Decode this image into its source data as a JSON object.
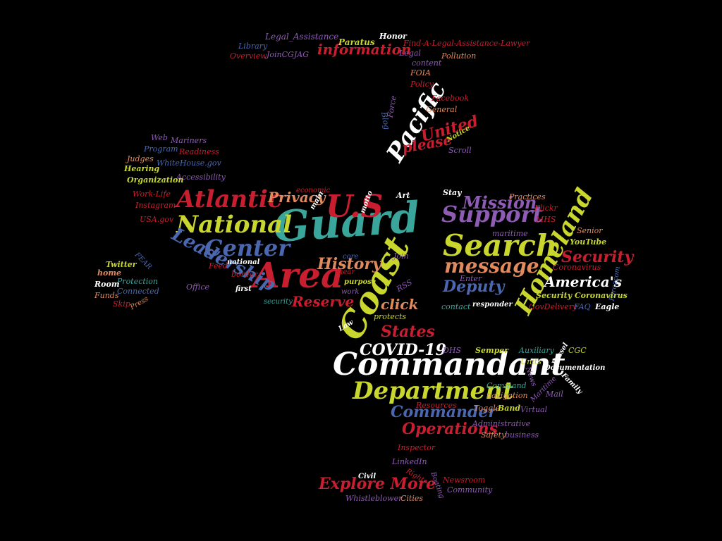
{
  "words": {
    "guard": {
      "text": "Guard",
      "color": "#3aa59a"
    },
    "area": {
      "text": "Area",
      "color": "#c81e2f"
    },
    "coast": {
      "text": "Coast",
      "color": "#c8d62e"
    },
    "us": {
      "text": "U.S",
      "color": "#c81e2f"
    },
    "commandant": {
      "text": "Commandant",
      "color": "#ffffff"
    },
    "search": {
      "text": "Search",
      "color": "#c8d62e"
    },
    "department": {
      "text": "Department",
      "color": "#c8d62e"
    },
    "national": {
      "text": "National",
      "color": "#c8d62e"
    },
    "atlantic": {
      "text": "Atlantic",
      "color": "#c81e2f"
    },
    "homeland": {
      "text": "Homeland",
      "color": "#c8d62e"
    },
    "center": {
      "text": "Center",
      "color": "#4a67b0"
    },
    "support": {
      "text": "Support",
      "color": "#8e5bb5"
    },
    "message": {
      "text": "message",
      "color": "#e08a5e"
    },
    "pacific": {
      "text": "Pacific",
      "color": "#ffffff"
    },
    "leadership": {
      "text": "Leadership",
      "color": "#4a67b0"
    },
    "covid": {
      "text": "COVID-19",
      "color": "#ffffff"
    },
    "commander": {
      "text": "Commander",
      "color": "#4a67b0"
    },
    "operations": {
      "text": "Operations",
      "color": "#c81e2f"
    },
    "mission": {
      "text": "Mission",
      "color": "#8e5bb5"
    },
    "explore": {
      "text": "Explore More",
      "color": "#c81e2f"
    },
    "history": {
      "text": "History",
      "color": "#e08a5e"
    },
    "reserve": {
      "text": "Reserve",
      "color": "#c81e2f"
    },
    "states": {
      "text": "States",
      "color": "#c81e2f"
    },
    "privacy": {
      "text": "Privacy",
      "color": "#e08a5e"
    },
    "security": {
      "text": "Security",
      "color": "#c81e2f"
    },
    "americas": {
      "text": "America's",
      "color": "#ffffff"
    },
    "deputy": {
      "text": "Deputy",
      "color": "#4a67b0"
    },
    "united": {
      "text": "United",
      "color": "#c81e2f"
    },
    "please": {
      "text": "please",
      "color": "#c81e2f"
    },
    "information": {
      "text": "information",
      "color": "#c81e2f"
    },
    "click": {
      "text": "click",
      "color": "#e08a5e"
    },
    "legal_assistance": {
      "text": "Legal_Assistance",
      "color": "#8e5bb5"
    },
    "paratus": {
      "text": "Paratus",
      "color": "#c8d62e"
    },
    "honor": {
      "text": "Honor",
      "color": "#ffffff"
    },
    "find_lawyer": {
      "text": "Find-A-Legal-Assistance-Lawyer",
      "color": "#c81e2f"
    },
    "library": {
      "text": "Library",
      "color": "#4a67b0"
    },
    "overview": {
      "text": "Overview",
      "color": "#c81e2f"
    },
    "joincgjag": {
      "text": "JoinCGJAG",
      "color": "#8e5bb5"
    },
    "legal": {
      "text": "Legal",
      "color": "#8e5bb5"
    },
    "pollution": {
      "text": "Pollution",
      "color": "#e08a5e"
    },
    "content": {
      "text": "content",
      "color": "#8e5bb5"
    },
    "foia": {
      "text": "FOIA",
      "color": "#e08a5e"
    },
    "policy": {
      "text": "Policy",
      "color": "#c81e2f"
    },
    "facebook": {
      "text": "Facebook",
      "color": "#c81e2f"
    },
    "force": {
      "text": "Force",
      "color": "#8e5bb5"
    },
    "blog": {
      "text": "Blog",
      "color": "#4a67b0"
    },
    "general": {
      "text": "General",
      "color": "#e08a5e"
    },
    "notice": {
      "text": "Notice",
      "color": "#c8d62e"
    },
    "scroll": {
      "text": "Scroll",
      "color": "#8e5bb5"
    },
    "web": {
      "text": "Web",
      "color": "#8e5bb5"
    },
    "mariners": {
      "text": "Mariners",
      "color": "#8e5bb5"
    },
    "program": {
      "text": "Program",
      "color": "#4a67b0"
    },
    "readiness": {
      "text": "Readiness",
      "color": "#c81e2f"
    },
    "judges": {
      "text": "Judges",
      "color": "#e08a5e"
    },
    "whitehouse": {
      "text": "WhiteHouse.gov",
      "color": "#4a67b0"
    },
    "hearing": {
      "text": "Hearing",
      "color": "#c8d62e"
    },
    "accessibility": {
      "text": "Accessibility",
      "color": "#8e5bb5"
    },
    "organization": {
      "text": "Organization",
      "color": "#c8d62e"
    },
    "worklife": {
      "text": "Work-Life",
      "color": "#c81e2f"
    },
    "instagram": {
      "text": "Instagram",
      "color": "#c81e2f"
    },
    "usagov": {
      "text": "USA.gov",
      "color": "#c81e2f"
    },
    "economic": {
      "text": "economic",
      "color": "#c81e2f"
    },
    "main": {
      "text": "main",
      "color": "#ffffff"
    },
    "motto": {
      "text": "motto",
      "color": "#ffffff"
    },
    "art": {
      "text": "Art",
      "color": "#ffffff"
    },
    "stay": {
      "text": "Stay",
      "color": "#ffffff"
    },
    "practices": {
      "text": "Practices",
      "color": "#e08a5e"
    },
    "flickr": {
      "text": "Flickr",
      "color": "#c81e2f"
    },
    "mhs": {
      "text": "MHS",
      "color": "#c81e2f"
    },
    "maritime_lc": {
      "text": "maritime",
      "color": "#8e5bb5"
    },
    "senior": {
      "text": "Senior",
      "color": "#e08a5e"
    },
    "youtube": {
      "text": "YouTube",
      "color": "#c8d62e"
    },
    "coronavirus1": {
      "text": "Coronavirus",
      "color": "#c81e2f"
    },
    "enter": {
      "text": "Enter",
      "color": "#8e5bb5"
    },
    "forcecom": {
      "text": "Forcecom",
      "color": "#4a67b0"
    },
    "security_coronavirus": {
      "text": "Security Coronavirus",
      "color": "#c8d62e"
    },
    "contact": {
      "text": "contact",
      "color": "#3aa59a"
    },
    "responder": {
      "text": "responder",
      "color": "#ffffff"
    },
    "govdelivery": {
      "text": "GovDelivery",
      "color": "#c81e2f"
    },
    "faq": {
      "text": "FAQ",
      "color": "#4a67b0"
    },
    "eagle": {
      "text": "Eagle",
      "color": "#ffffff"
    },
    "twitter": {
      "text": "Twitter",
      "color": "#c8d62e"
    },
    "fear": {
      "text": "FEAR",
      "color": "#4a67b0"
    },
    "home": {
      "text": "home",
      "color": "#e08a5e"
    },
    "protection": {
      "text": "Protection",
      "color": "#3aa59a"
    },
    "room": {
      "text": "Room",
      "color": "#ffffff"
    },
    "connected": {
      "text": "Connected",
      "color": "#4a67b0"
    },
    "funds": {
      "text": "Funds",
      "color": "#e08a5e"
    },
    "skip": {
      "text": "Skip",
      "color": "#c81e2f"
    },
    "press": {
      "text": "Press",
      "color": "#e08a5e"
    },
    "feed": {
      "text": "Feed",
      "color": "#c81e2f"
    },
    "national_lc": {
      "text": "national",
      "color": "#ffffff"
    },
    "border": {
      "text": "border",
      "color": "#c81e2f"
    },
    "office": {
      "text": "Office",
      "color": "#8e5bb5"
    },
    "first": {
      "text": "first",
      "color": "#ffffff"
    },
    "core": {
      "text": "core",
      "color": "#4a67b0"
    },
    "near": {
      "text": "near",
      "color": "#c81e2f"
    },
    "purpose": {
      "text": "purpose",
      "color": "#c8d62e"
    },
    "work": {
      "text": "work",
      "color": "#8e5bb5"
    },
    "join": {
      "text": "Join",
      "color": "#8e5bb5"
    },
    "rss": {
      "text": "RSS",
      "color": "#8e5bb5"
    },
    "security_lc": {
      "text": "security",
      "color": "#3aa59a"
    },
    "protects": {
      "text": "protects",
      "color": "#c8d62e"
    },
    "law": {
      "text": "Law",
      "color": "#ffffff"
    },
    "dhs": {
      "text": "DHS",
      "color": "#8e5bb5"
    },
    "semper": {
      "text": "Semper",
      "color": "#c8d62e"
    },
    "auxiliary": {
      "text": "Auxiliary",
      "color": "#3aa59a"
    },
    "vessel": {
      "text": "Vessel",
      "color": "#ffffff"
    },
    "cgc": {
      "text": "CGC",
      "color": "#c8d62e"
    },
    "units": {
      "text": "Units",
      "color": "#c8d62e"
    },
    "documentation": {
      "text": "Documentation",
      "color": "#ffffff"
    },
    "news": {
      "text": "News",
      "color": "#8e5bb5"
    },
    "maritime_cap": {
      "text": "Maritime",
      "color": "#8e5bb5"
    },
    "family": {
      "text": "Family",
      "color": "#ffffff"
    },
    "command": {
      "text": "Command",
      "color": "#3aa59a"
    },
    "navigation": {
      "text": "navigation",
      "color": "#e08a5e"
    },
    "mail": {
      "text": "Mail",
      "color": "#8e5bb5"
    },
    "resources": {
      "text": "Resources",
      "color": "#c81e2f"
    },
    "toggle": {
      "text": "Toggle",
      "color": "#e08a5e"
    },
    "band": {
      "text": "Band",
      "color": "#c8d62e"
    },
    "virtual": {
      "text": "Virtual",
      "color": "#8e5bb5"
    },
    "administrative": {
      "text": "Administrative",
      "color": "#8e5bb5"
    },
    "safety": {
      "text": "Safety",
      "color": "#e08a5e"
    },
    "business": {
      "text": "business",
      "color": "#8e5bb5"
    },
    "inspector": {
      "text": "Inspector",
      "color": "#c81e2f"
    },
    "linkedin": {
      "text": "LinkedIn",
      "color": "#8e5bb5"
    },
    "civil": {
      "text": "Civil",
      "color": "#ffffff"
    },
    "rights": {
      "text": "Rights",
      "color": "#c81e2f"
    },
    "boating": {
      "text": "Boating",
      "color": "#8e5bb5"
    },
    "newsroom": {
      "text": "Newsroom",
      "color": "#c81e2f"
    },
    "community": {
      "text": "Community",
      "color": "#8e5bb5"
    },
    "whistleblower": {
      "text": "Whistleblower",
      "color": "#8e5bb5"
    },
    "cities": {
      "text": "Cities",
      "color": "#e08a5e"
    }
  }
}
